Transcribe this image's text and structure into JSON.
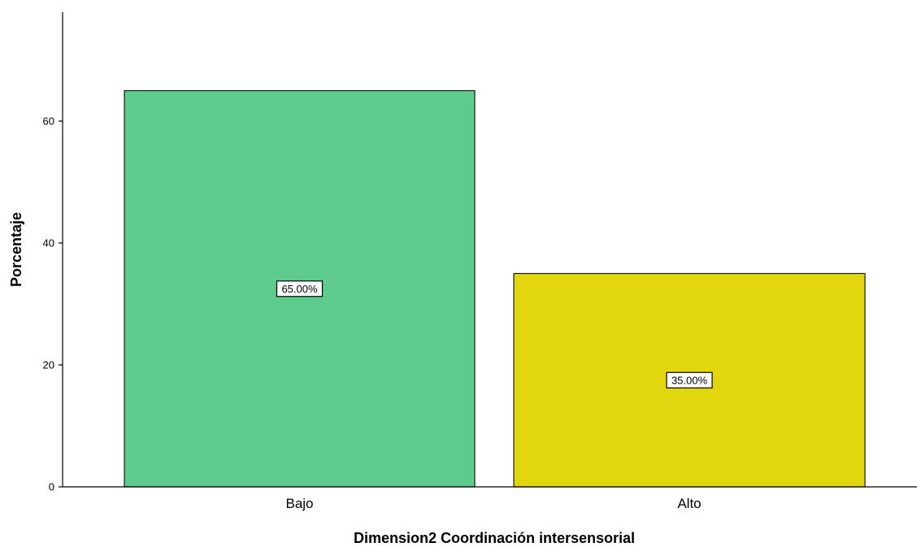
{
  "chart_data": {
    "type": "bar",
    "title": "",
    "xlabel": "Dimension2 Coordinación intersensorial",
    "ylabel": "Porcentaje",
    "categories": [
      "Bajo",
      "Alto"
    ],
    "values": [
      65,
      35
    ],
    "data_labels": [
      "65.00%",
      "35.00%"
    ],
    "colors": [
      "#5ccb8c",
      "#e2d70f"
    ],
    "ylim": [
      0,
      78
    ],
    "yticks": [
      0,
      20,
      40,
      60
    ],
    "ytick_labels": [
      "0",
      "20",
      "40",
      "60"
    ],
    "grid": false,
    "legend": "none"
  }
}
